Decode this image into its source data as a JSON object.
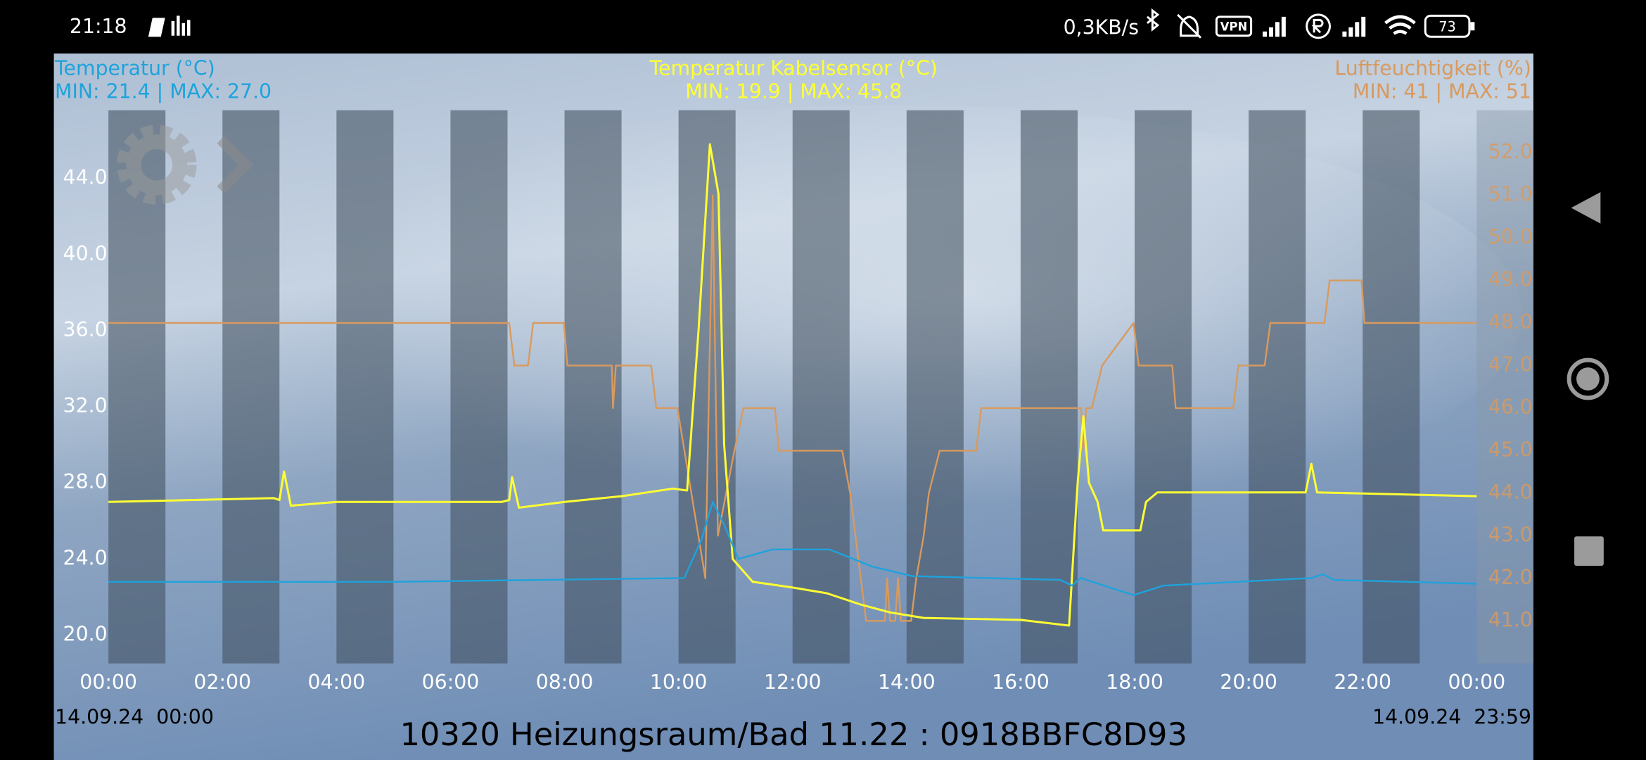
{
  "status_bar": {
    "time": "21:18",
    "network_speed": "0,3KB/s",
    "vpn": "VPN",
    "battery": "73"
  },
  "chart_data": {
    "type": "line",
    "title": "10320 Heizungsraum/Bad 11.22 : 0918BBFC8D93",
    "start_label": "14.09.24  00:00",
    "end_label": "14.09.24  23:59",
    "xlim": [
      0,
      24
    ],
    "xticks": [
      {
        "value": 0,
        "label": "00:00"
      },
      {
        "value": 2,
        "label": "02:00"
      },
      {
        "value": 4,
        "label": "04:00"
      },
      {
        "value": 6,
        "label": "06:00"
      },
      {
        "value": 8,
        "label": "08:00"
      },
      {
        "value": 10,
        "label": "10:00"
      },
      {
        "value": 12,
        "label": "12:00"
      },
      {
        "value": 14,
        "label": "14:00"
      },
      {
        "value": 16,
        "label": "16:00"
      },
      {
        "value": 18,
        "label": "18:00"
      },
      {
        "value": 20,
        "label": "20:00"
      },
      {
        "value": 22,
        "label": "22:00"
      },
      {
        "value": 24,
        "label": "00:00"
      }
    ],
    "ylim": [
      18.51,
      47.59
    ],
    "yticks": [
      {
        "value": 20,
        "label": "20.0"
      },
      {
        "value": 24,
        "label": "24.0"
      },
      {
        "value": 28,
        "label": "28.0"
      },
      {
        "value": 32,
        "label": "32.0"
      },
      {
        "value": 36,
        "label": "36.0"
      },
      {
        "value": 40,
        "label": "40.0"
      },
      {
        "value": 44,
        "label": "44.0"
      }
    ],
    "y2lim": [
      40,
      53
    ],
    "y2ticks": [
      {
        "value": 41,
        "label": "41.0"
      },
      {
        "value": 42,
        "label": "42.0"
      },
      {
        "value": 43,
        "label": "43.0"
      },
      {
        "value": 44,
        "label": "44.0"
      },
      {
        "value": 45,
        "label": "45.0"
      },
      {
        "value": 46,
        "label": "46.0"
      },
      {
        "value": 47,
        "label": "47.0"
      },
      {
        "value": 48,
        "label": "48.0"
      },
      {
        "value": 49,
        "label": "49.0"
      },
      {
        "value": 50,
        "label": "50.0"
      },
      {
        "value": 51,
        "label": "51.0"
      },
      {
        "value": 52,
        "label": "52.0"
      }
    ],
    "series": [
      {
        "name": "Temperatur (°C)",
        "stats": "MIN: 21.4 | MAX: 27.0",
        "color": "#1ea3dc",
        "x": [
          0,
          5,
          10.1,
          10.4,
          10.6,
          10.8,
          11.05,
          11.4,
          11.65,
          12.65,
          13.4,
          14.1,
          16.7,
          16.9,
          17.05,
          17.98,
          18.5,
          21.1,
          21.3,
          21.5,
          24
        ],
        "values": [
          22.8,
          22.8,
          23.0,
          25.0,
          27.0,
          25.8,
          24.0,
          24.3,
          24.5,
          24.5,
          23.6,
          23.1,
          22.9,
          22.6,
          23.0,
          22.1,
          22.6,
          23.0,
          23.2,
          22.9,
          22.7
        ]
      },
      {
        "name": "Temperatur Kabelsensor (°C)",
        "stats": "MIN: 19.9 | MAX: 45.8",
        "color": "#ffff33",
        "x": [
          0,
          1.5,
          2.9,
          3.0,
          3.08,
          3.2,
          4.0,
          6.9,
          7.03,
          7.08,
          7.2,
          8.0,
          9.0,
          9.9,
          10.15,
          10.35,
          10.55,
          10.7,
          10.8,
          10.95,
          11.3,
          12.0,
          12.6,
          13.2,
          13.7,
          14.3,
          16.0,
          16.85,
          17.0,
          17.1,
          17.2,
          17.35,
          17.45,
          18.1,
          18.2,
          18.4,
          21.0,
          21.1,
          21.2,
          24.0
        ],
        "values": [
          27.0,
          27.1,
          27.2,
          27.1,
          28.6,
          26.8,
          27.0,
          27.0,
          27.1,
          28.3,
          26.7,
          27.0,
          27.3,
          27.7,
          27.6,
          36.0,
          45.8,
          43.2,
          30.0,
          24.0,
          22.8,
          22.5,
          22.2,
          21.6,
          21.2,
          20.9,
          20.8,
          20.5,
          28.0,
          31.5,
          28.0,
          27.0,
          25.5,
          25.5,
          27.0,
          27.5,
          27.5,
          29.0,
          27.5,
          27.3
        ]
      },
      {
        "name": "Luftfeuchtigkeit (%)",
        "stats": "MIN: 41 | MAX: 51",
        "color": "#d99a5e",
        "axis": "y2",
        "x": [
          0,
          7.03,
          7.12,
          7.36,
          7.45,
          7.99,
          8.05,
          8.83,
          8.85,
          8.9,
          9.52,
          9.61,
          9.98,
          10.47,
          10.6,
          10.69,
          10.98,
          11.14,
          11.69,
          11.76,
          12.87,
          13.01,
          13.29,
          13.62,
          13.66,
          13.71,
          13.8,
          13.85,
          13.9,
          14.08,
          14.17,
          14.3,
          14.39,
          14.58,
          15.22,
          15.31,
          17.06,
          17.1,
          17.15,
          17.25,
          17.43,
          17.98,
          18.07,
          18.66,
          18.72,
          19.73,
          19.82,
          20.28,
          20.38,
          21.33,
          21.42,
          21.98,
          22.03,
          24
        ],
        "values": [
          48,
          48,
          47,
          47,
          48,
          48,
          47,
          47,
          46,
          47,
          47,
          46,
          46,
          42,
          51,
          43,
          45,
          46,
          46,
          45,
          45,
          44,
          41,
          41,
          42,
          41,
          41,
          42,
          41,
          41,
          42,
          43,
          44,
          45,
          45,
          46,
          46,
          45,
          46,
          46,
          47,
          48,
          47,
          47,
          46,
          46,
          47,
          47,
          48,
          48,
          49,
          49,
          48,
          48
        ]
      }
    ]
  }
}
